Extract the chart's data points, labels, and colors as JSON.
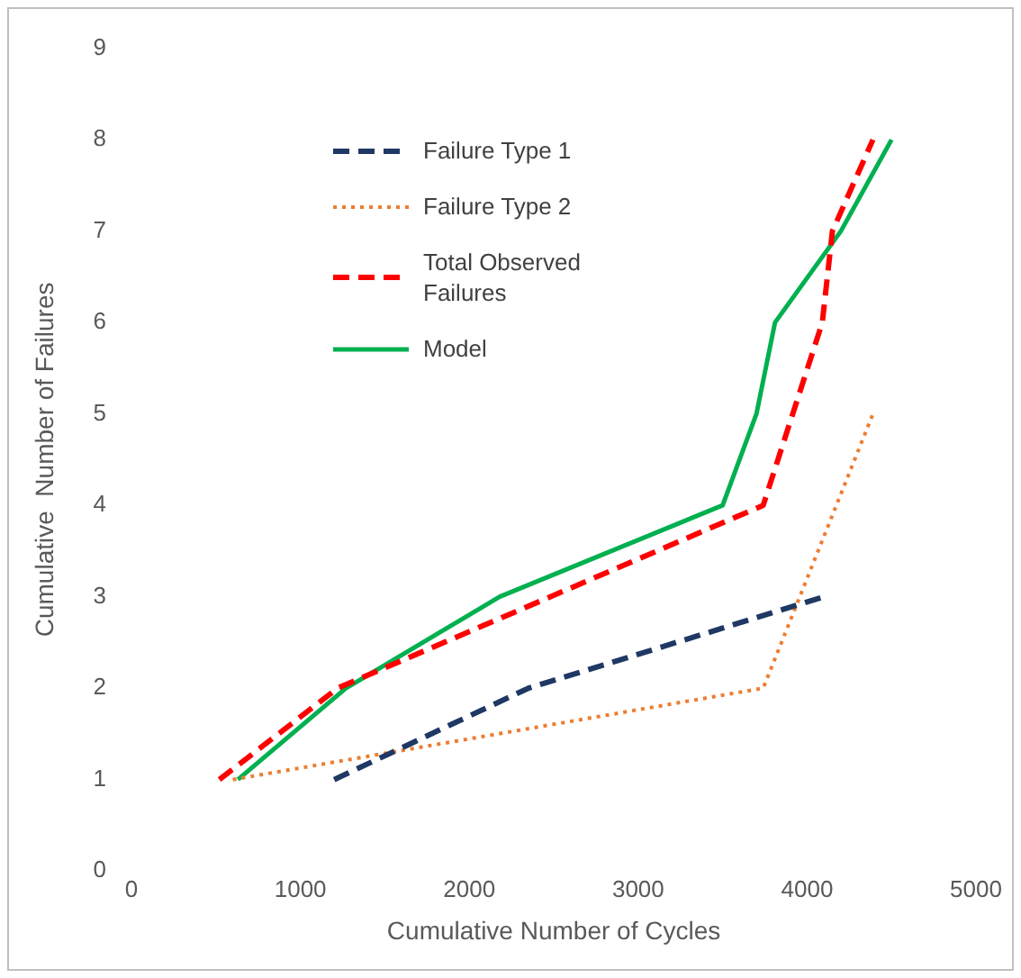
{
  "chart_data": {
    "type": "line",
    "xlabel": "Cumulative Number of Cycles",
    "ylabel": "Cumulative  Number of Failures",
    "xlim": [
      0,
      5000
    ],
    "xticks": [
      0,
      1000,
      2000,
      3000,
      4000,
      5000
    ],
    "ylim": [
      0,
      9
    ],
    "yticks": [
      0,
      1,
      2,
      3,
      4,
      5,
      6,
      7,
      8,
      9
    ],
    "grid": false,
    "legend": "top left",
    "marker": "none",
    "series": [
      {
        "name": "Failure Type 1",
        "color": "#1f3864",
        "line_style": "dashed",
        "x": [
          1200,
          2350,
          4100
        ],
        "values": [
          1,
          2,
          3
        ]
      },
      {
        "name": "Failure Type 2",
        "color": "#ed7d31",
        "line_style": "dotted",
        "x": [
          600,
          3740,
          4390
        ],
        "values": [
          1,
          2,
          5
        ]
      },
      {
        "name": "Total Observed Failures",
        "color": "#ff0000",
        "line_style": "dashed",
        "x": [
          520,
          1220,
          3740,
          4090,
          4150,
          4390
        ],
        "values": [
          1,
          2,
          4,
          6,
          7,
          8
        ]
      },
      {
        "name": "Model",
        "color": "#00b050",
        "line_style": "solid",
        "x": [
          630,
          1270,
          2180,
          3500,
          3700,
          3810,
          4200,
          4500
        ],
        "values": [
          1,
          2,
          3,
          4,
          5,
          6,
          7,
          8
        ]
      }
    ]
  }
}
